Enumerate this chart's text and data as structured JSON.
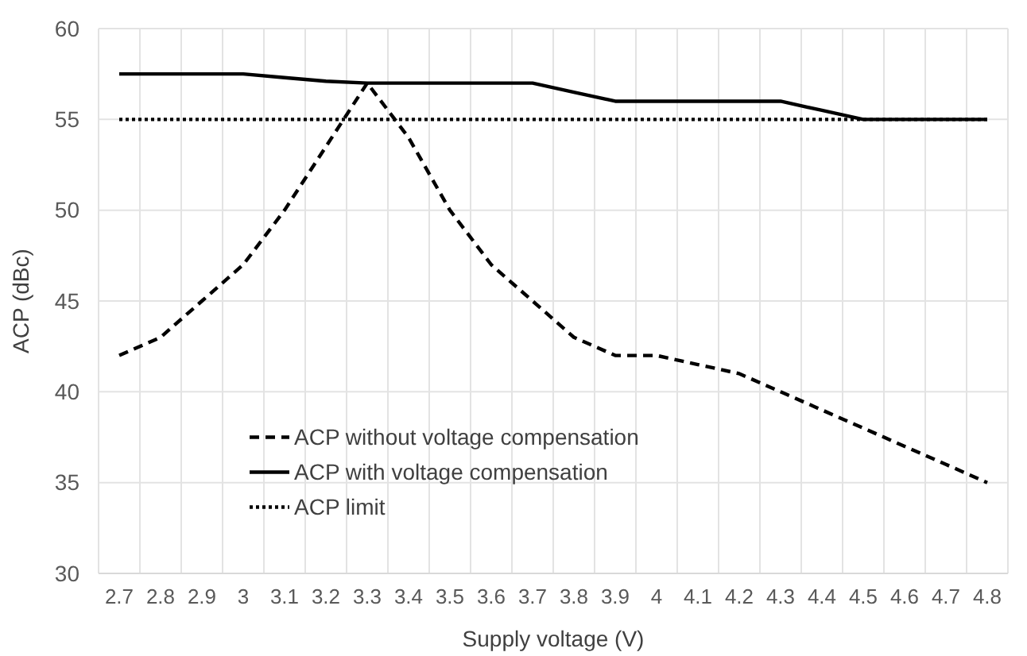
{
  "chart_data": {
    "type": "line",
    "xlabel": "Supply voltage (V)",
    "ylabel": "ACP (dBc)",
    "categories": [
      "2.7",
      "2.8",
      "2.9",
      "3",
      "3.1",
      "3.2",
      "3.3",
      "3.4",
      "3.5",
      "3.6",
      "3.7",
      "3.8",
      "3.9",
      "4",
      "4.1",
      "4.2",
      "4.3",
      "4.4",
      "4.5",
      "4.6",
      "4.7",
      "4.8"
    ],
    "series": [
      {
        "name": "ACP without voltage compensation",
        "color": "#000000",
        "line_style": "dashed",
        "values": [
          42,
          43,
          45,
          47,
          50,
          53.5,
          57,
          54,
          50,
          47,
          45,
          43,
          42,
          42,
          41.5,
          41,
          40,
          39,
          38,
          37,
          36,
          35
        ]
      },
      {
        "name": "ACP with voltage compensation",
        "color": "#000000",
        "line_style": "solid",
        "values": [
          57.5,
          57.5,
          57.5,
          57.5,
          57.3,
          57.1,
          57,
          57,
          57,
          57,
          57,
          56.5,
          56,
          56,
          56,
          56,
          56,
          55.5,
          55,
          55,
          55,
          55
        ]
      },
      {
        "name": "ACP limit",
        "color": "#000000",
        "line_style": "dotted",
        "values": [
          55,
          55,
          55,
          55,
          55,
          55,
          55,
          55,
          55,
          55,
          55,
          55,
          55,
          55,
          55,
          55,
          55,
          55,
          55,
          55,
          55,
          55
        ]
      }
    ],
    "ylim": [
      30,
      60
    ],
    "yticks": [
      30,
      35,
      40,
      45,
      50,
      55,
      60
    ],
    "grid": true,
    "legend": "bottom left",
    "marker": "none"
  }
}
